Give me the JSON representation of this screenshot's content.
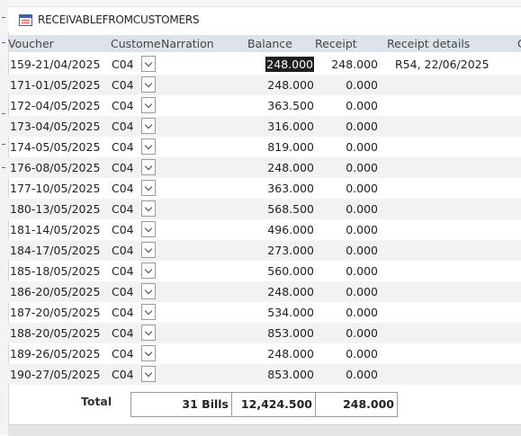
{
  "form": {
    "title": "RECEIVABLEFROMCUSTOMERS",
    "icon": "form-icon"
  },
  "columns": {
    "voucher": "Voucher",
    "customer": "Custome",
    "narration": "Narration",
    "balance": "Balance",
    "receipt": "Receipt",
    "receipt_details": "Receipt details",
    "extra": "C"
  },
  "rows": [
    {
      "voucher": "159-21/04/2025",
      "customer": "C04",
      "balance": "248.000",
      "receipt": "248.000",
      "details": "R54, 22/06/2025"
    },
    {
      "voucher": "171-01/05/2025",
      "customer": "C04",
      "balance": "248.000",
      "receipt": "0.000",
      "details": ""
    },
    {
      "voucher": "172-04/05/2025",
      "customer": "C04",
      "balance": "363.500",
      "receipt": "0.000",
      "details": ""
    },
    {
      "voucher": "173-04/05/2025",
      "customer": "C04",
      "balance": "316.000",
      "receipt": "0.000",
      "details": ""
    },
    {
      "voucher": "174-05/05/2025",
      "customer": "C04",
      "balance": "819.000",
      "receipt": "0.000",
      "details": ""
    },
    {
      "voucher": "176-08/05/2025",
      "customer": "C04",
      "balance": "248.000",
      "receipt": "0.000",
      "details": ""
    },
    {
      "voucher": "177-10/05/2025",
      "customer": "C04",
      "balance": "363.000",
      "receipt": "0.000",
      "details": ""
    },
    {
      "voucher": "180-13/05/2025",
      "customer": "C04",
      "balance": "568.500",
      "receipt": "0.000",
      "details": ""
    },
    {
      "voucher": "181-14/05/2025",
      "customer": "C04",
      "balance": "496.000",
      "receipt": "0.000",
      "details": ""
    },
    {
      "voucher": "184-17/05/2025",
      "customer": "C04",
      "balance": "273.000",
      "receipt": "0.000",
      "details": ""
    },
    {
      "voucher": "185-18/05/2025",
      "customer": "C04",
      "balance": "560.000",
      "receipt": "0.000",
      "details": ""
    },
    {
      "voucher": "186-20/05/2025",
      "customer": "C04",
      "balance": "248.000",
      "receipt": "0.000",
      "details": ""
    },
    {
      "voucher": "187-20/05/2025",
      "customer": "C04",
      "balance": "534.000",
      "receipt": "0.000",
      "details": ""
    },
    {
      "voucher": "188-20/05/2025",
      "customer": "C04",
      "balance": "853.000",
      "receipt": "0.000",
      "details": ""
    },
    {
      "voucher": "189-26/05/2025",
      "customer": "C04",
      "balance": "248.000",
      "receipt": "0.000",
      "details": ""
    },
    {
      "voucher": "190-27/05/2025",
      "customer": "C04",
      "balance": "853.000",
      "receipt": "0.000",
      "details": ""
    }
  ],
  "totals": {
    "label": "Total",
    "bills": "31 Bills",
    "balance": "12,424.500",
    "receipt": "248.000"
  }
}
